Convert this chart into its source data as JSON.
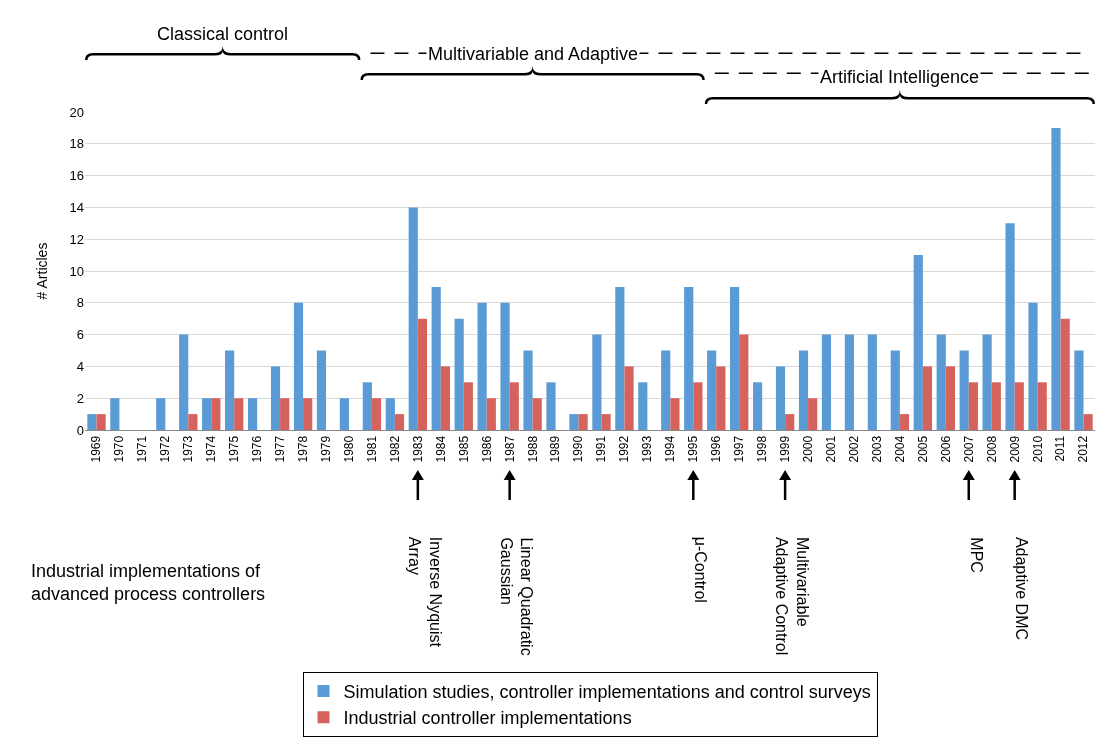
{
  "chart_data": {
    "type": "bar",
    "ylabel": "# Articles",
    "categories": [
      "1969",
      "1970",
      "1971",
      "1972",
      "1973",
      "1974",
      "1975",
      "1976",
      "1977",
      "1978",
      "1979",
      "1980",
      "1981",
      "1982",
      "1983",
      "1984",
      "1985",
      "1986",
      "1987",
      "1988",
      "1989",
      "1990",
      "1991",
      "1992",
      "1993",
      "1994",
      "1995",
      "1996",
      "1997",
      "1998",
      "1999",
      "2000",
      "2001",
      "2002",
      "2003",
      "2004",
      "2005",
      "2006",
      "2007",
      "2008",
      "2009",
      "2010",
      "2011",
      "2012"
    ],
    "series": [
      {
        "name": "Simulation studies, controller implementations and control surveys",
        "color": "#5b9bd5",
        "values": [
          1,
          2,
          0,
          2,
          6,
          2,
          5,
          2,
          4,
          8,
          5,
          2,
          3,
          2,
          14,
          9,
          7,
          8,
          8,
          5,
          3,
          1,
          6,
          9,
          3,
          5,
          9,
          5,
          9,
          3,
          4,
          5,
          6,
          6,
          6,
          5,
          11,
          6,
          5,
          6,
          13,
          8,
          19,
          5
        ]
      },
      {
        "name": "Industrial controller implementations",
        "color": "#d6625d",
        "values": [
          1,
          0,
          0,
          0,
          1,
          2,
          2,
          0,
          2,
          2,
          0,
          0,
          2,
          1,
          7,
          4,
          3,
          2,
          3,
          2,
          0,
          1,
          1,
          4,
          0,
          2,
          3,
          4,
          6,
          0,
          1,
          2,
          0,
          0,
          0,
          1,
          4,
          4,
          3,
          3,
          3,
          3,
          7,
          1
        ]
      }
    ],
    "ylim": [
      0,
      20
    ],
    "yticks": [
      0,
      2,
      4,
      6,
      8,
      10,
      12,
      14,
      16,
      18,
      20
    ],
    "grid": "y",
    "legend": "bottom",
    "annotations": [
      "Classical control",
      "Multivariable and Adaptive",
      "Artificial Intelligence",
      "Inverse Nyquist\nArray",
      "Linear Quadratic\nGaussian",
      "μ-Control",
      "Multivariable\nAdaptive Control",
      "MPC",
      "Adaptive DMC",
      "Industrial implementations of\nadvanced process controllers"
    ]
  }
}
